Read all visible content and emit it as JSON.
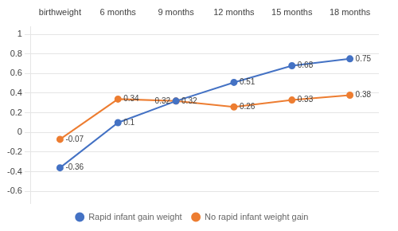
{
  "chart_data": {
    "type": "line",
    "categories": [
      "birthweight",
      "6 months",
      "9 months",
      "12 months",
      "15 months",
      "18 months"
    ],
    "series": [
      {
        "name": "Rapid infant gain weight",
        "color": "#4472C4",
        "marker": "circle",
        "values": [
          -0.36,
          0.1,
          0.32,
          0.51,
          0.68,
          0.75
        ]
      },
      {
        "name": "No rapid infant weight gain",
        "color": "#ED7D31",
        "marker": "circle",
        "values": [
          -0.07,
          0.34,
          0.32,
          0.26,
          0.33,
          0.38
        ]
      }
    ],
    "ylim": [
      -0.72,
      1.08
    ],
    "yticks": [
      -0.6,
      -0.4,
      -0.2,
      0,
      0.2,
      0.4,
      0.6,
      0.8,
      1
    ],
    "grid": true,
    "legend": "bottom",
    "data_labels": true
  }
}
